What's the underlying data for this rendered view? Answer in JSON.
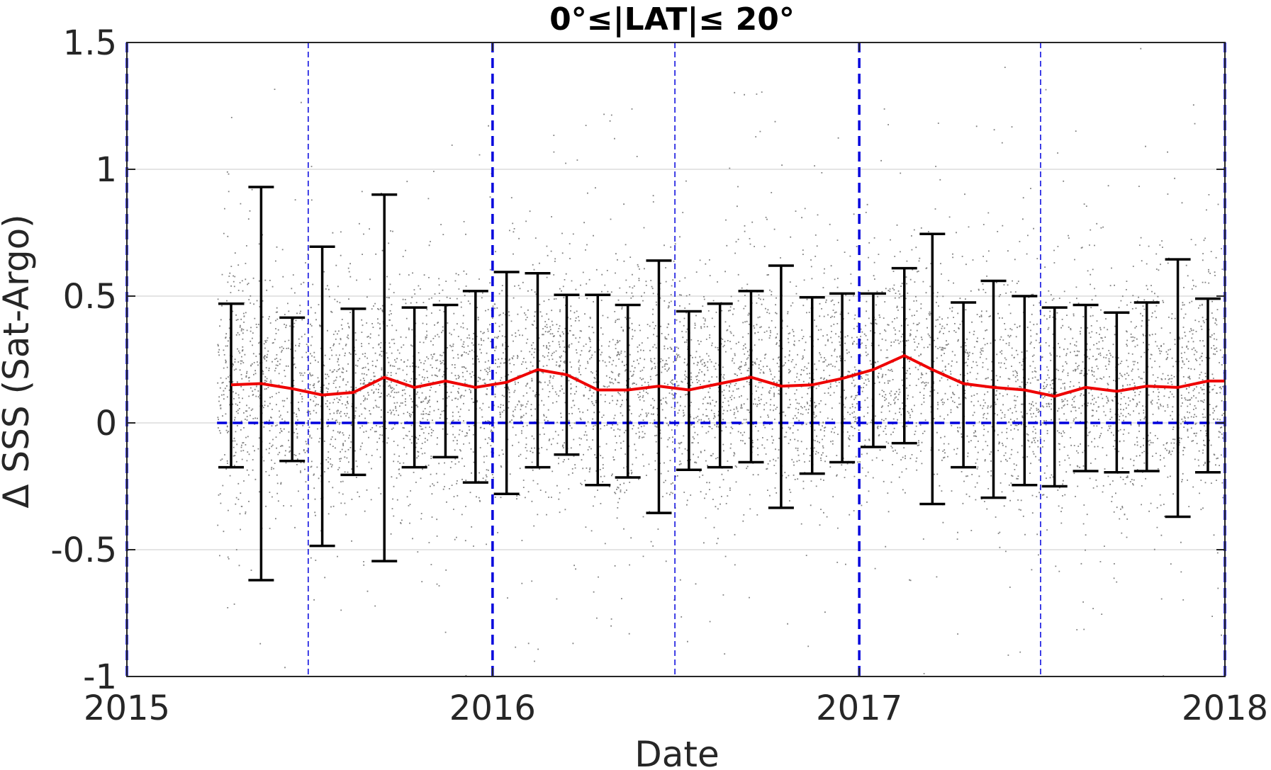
{
  "chart_data": {
    "type": "scatter",
    "title": "0°≤|LAT|≤ 20°",
    "xlabel": "Date",
    "ylabel": "Δ SSS (Sat-Argo)",
    "xlim": [
      "2015-01-01",
      "2018-01-01"
    ],
    "ylim": [
      -1,
      1.5
    ],
    "x_ticks": [
      "2015",
      "2016",
      "2017",
      "2018"
    ],
    "y_ticks": [
      "-1",
      "-0.5",
      "0",
      "0.5",
      "1",
      "1.5"
    ],
    "y_tick_values": [
      -1,
      -0.5,
      0,
      0.5,
      1,
      1.5
    ],
    "grid": true,
    "colors": {
      "scatter": "#808080",
      "mean_line": "#ee0000",
      "error_bars": "#000000",
      "reference_lines": "#0000dd",
      "axes": "#262626",
      "grid": "#dcdcdc"
    },
    "scatter_cloud": {
      "x_start": "2015-04-01",
      "x_end": "2018-01-01"
    },
    "year_boundaries": [
      "2015-01-01",
      "2016-01-01",
      "2017-01-01",
      "2018-01-01"
    ],
    "mid_year_lines": [
      "2015-07-01",
      "2016-07-01",
      "2017-07-01"
    ],
    "zero_line": 0,
    "monthly_stats": {
      "dates": [
        "2015-04-15",
        "2015-05-15",
        "2015-06-15",
        "2015-07-15",
        "2015-08-15",
        "2015-09-15",
        "2015-10-15",
        "2015-11-15",
        "2015-12-15",
        "2016-01-15",
        "2016-02-15",
        "2016-03-15",
        "2016-04-15",
        "2016-05-15",
        "2016-06-15",
        "2016-07-15",
        "2016-08-15",
        "2016-09-15",
        "2016-10-15",
        "2016-11-15",
        "2016-12-15",
        "2017-01-15",
        "2017-02-15",
        "2017-03-15",
        "2017-04-15",
        "2017-05-15",
        "2017-06-15",
        "2017-07-15",
        "2017-08-15",
        "2017-09-15",
        "2017-10-15",
        "2017-11-15",
        "2017-12-15"
      ],
      "mean": [
        0.15,
        0.155,
        0.135,
        0.11,
        0.12,
        0.18,
        0.14,
        0.165,
        0.14,
        0.16,
        0.21,
        0.19,
        0.13,
        0.13,
        0.145,
        0.13,
        0.155,
        0.18,
        0.145,
        0.15,
        0.175,
        0.21,
        0.265,
        0.21,
        0.155,
        0.14,
        0.13,
        0.105,
        0.14,
        0.125,
        0.145,
        0.14,
        0.165
      ],
      "upper": [
        0.47,
        0.93,
        0.415,
        0.695,
        0.45,
        0.9,
        0.455,
        0.465,
        0.52,
        0.595,
        0.59,
        0.505,
        0.505,
        0.465,
        0.64,
        0.44,
        0.47,
        0.52,
        0.62,
        0.495,
        0.51,
        0.51,
        0.61,
        0.745,
        0.475,
        0.56,
        0.5,
        0.455,
        0.465,
        0.435,
        0.475,
        0.645,
        0.49
      ],
      "lower": [
        -0.175,
        -0.62,
        -0.15,
        -0.485,
        -0.205,
        -0.545,
        -0.175,
        -0.135,
        -0.235,
        -0.28,
        -0.175,
        -0.125,
        -0.245,
        -0.215,
        -0.355,
        -0.185,
        -0.175,
        -0.155,
        -0.335,
        -0.2,
        -0.155,
        -0.095,
        -0.08,
        -0.32,
        -0.175,
        -0.295,
        -0.245,
        -0.25,
        -0.19,
        -0.195,
        -0.19,
        -0.37,
        -0.195
      ]
    }
  }
}
